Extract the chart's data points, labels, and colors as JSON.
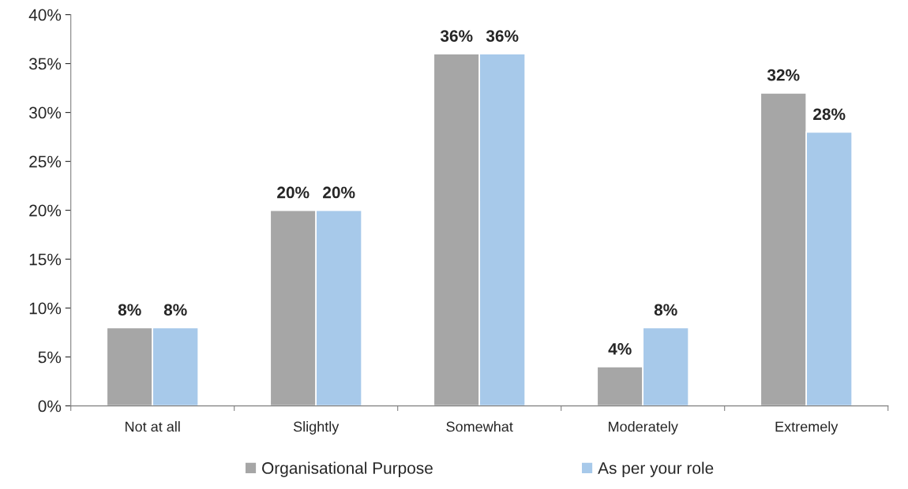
{
  "chart_data": {
    "type": "bar",
    "categories": [
      "Not at all",
      "Slightly",
      "Somewhat",
      "Moderately",
      "Extremely"
    ],
    "series": [
      {
        "name": "Organisational Purpose",
        "color": "#a6a6a6",
        "values": [
          8,
          20,
          36,
          4,
          32
        ],
        "value_labels": [
          "8%",
          "20%",
          "36%",
          "4%",
          "32%"
        ]
      },
      {
        "name": "As per your role",
        "color": "#a7c9ea",
        "values": [
          8,
          20,
          36,
          8,
          28
        ],
        "value_labels": [
          "8%",
          "20%",
          "36%",
          "8%",
          "28%"
        ]
      }
    ],
    "ylim": [
      0,
      40
    ],
    "yticks": [
      {
        "value": 0,
        "label": "0%"
      },
      {
        "value": 5,
        "label": "5%"
      },
      {
        "value": 10,
        "label": "10%"
      },
      {
        "value": 15,
        "label": "15%"
      },
      {
        "value": 20,
        "label": "20%"
      },
      {
        "value": 25,
        "label": "25%"
      },
      {
        "value": 30,
        "label": "30%"
      },
      {
        "value": 35,
        "label": "35%"
      },
      {
        "value": 40,
        "label": "40%"
      }
    ],
    "grid": false,
    "legend": "bottom"
  }
}
